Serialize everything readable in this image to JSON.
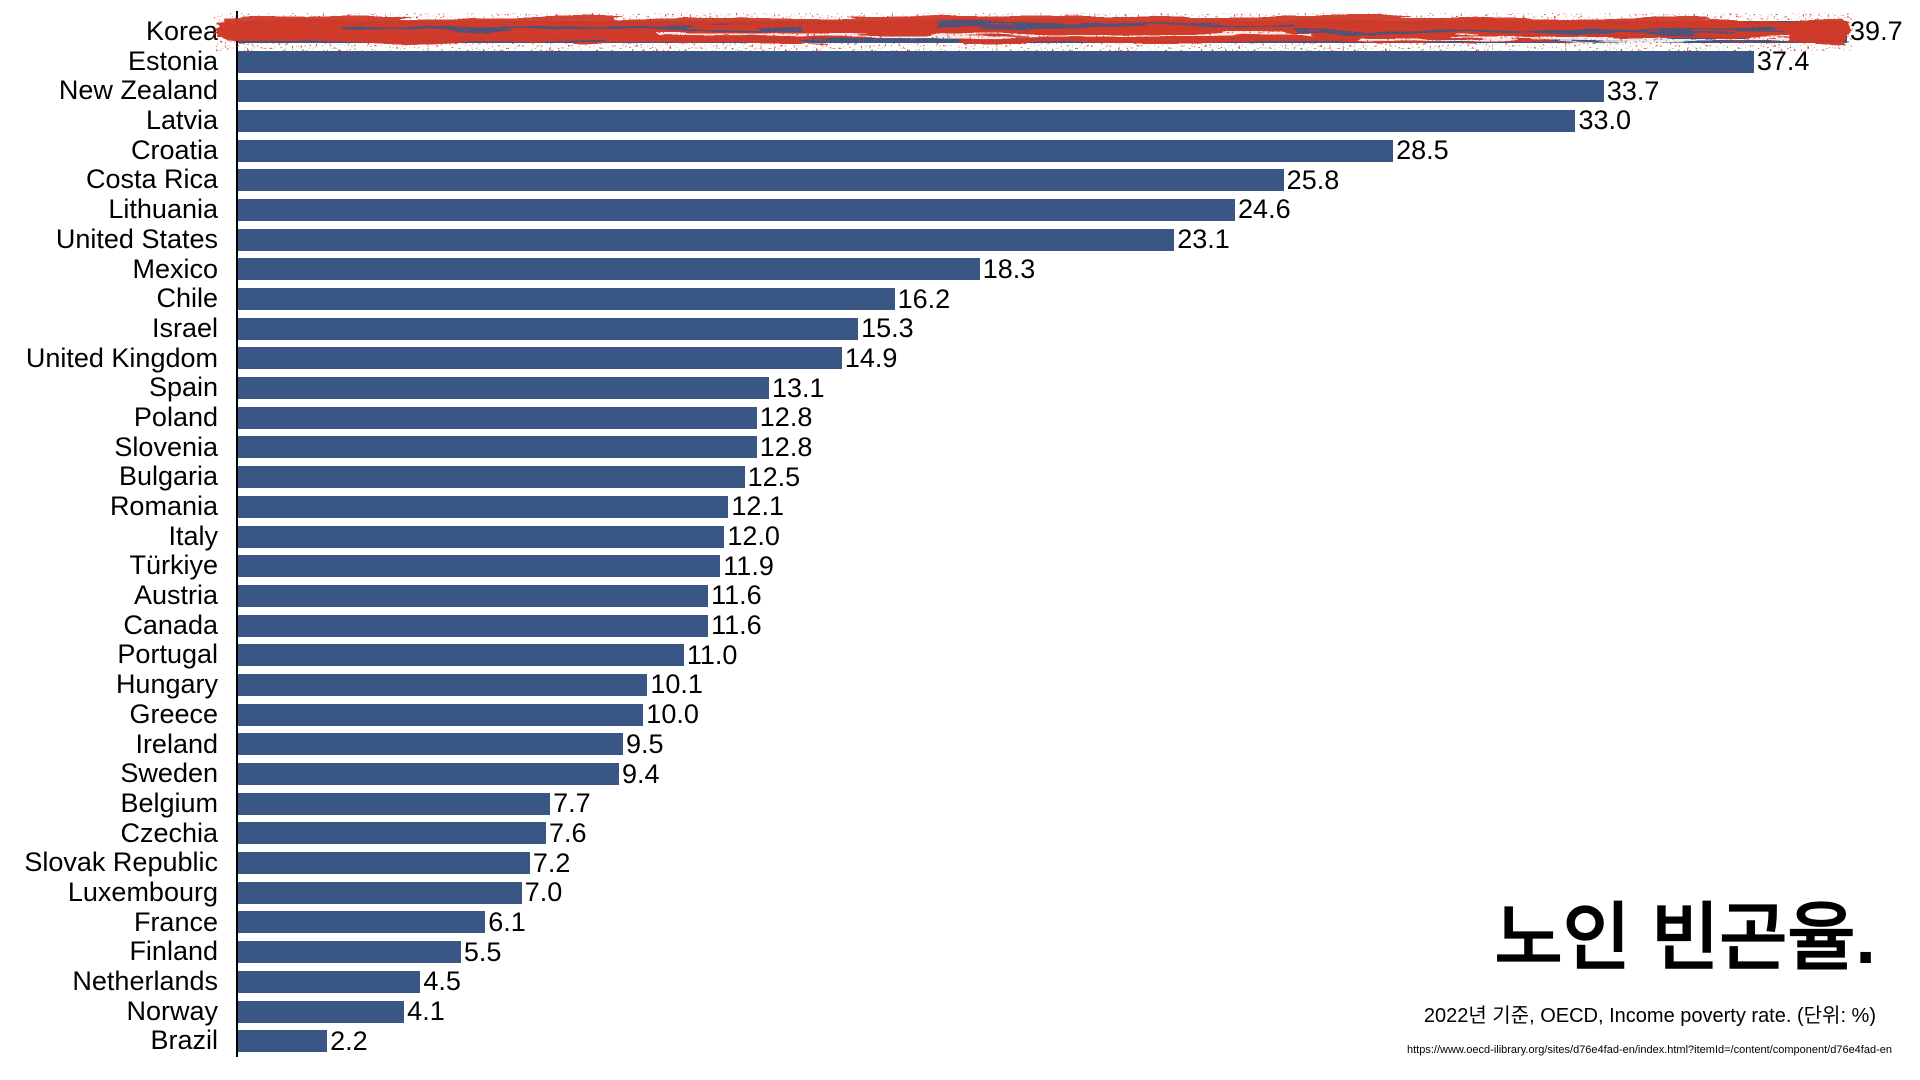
{
  "chart_data": {
    "type": "bar",
    "orientation": "horizontal",
    "title": "노인 빈곤율.",
    "subtitle": "2022년 기준, OECD, Income poverty rate. (단위: %)",
    "source_url": "https://www.oecd-ilibrary.org/sites/d76e4fad-en/index.html?itemId=/content/component/d76e4fad-en",
    "unit": "%",
    "xlim": [
      0,
      41.5
    ],
    "grid": false,
    "legend": false,
    "bar_color": "#3A5685",
    "highlight_color": "#CF3A29",
    "highlighted_category": "Korea",
    "categories": [
      "Korea",
      "Estonia",
      "New Zealand",
      "Latvia",
      "Croatia",
      "Costa Rica",
      "Lithuania",
      "United States",
      "Mexico",
      "Chile",
      "Israel",
      "United Kingdom",
      "Spain",
      "Poland",
      "Slovenia",
      "Bulgaria",
      "Romania",
      "Italy",
      "Türkiye",
      "Austria",
      "Canada",
      "Portugal",
      "Hungary",
      "Greece",
      "Ireland",
      "Sweden",
      "Belgium",
      "Czechia",
      "Slovak Republic",
      "Luxembourg",
      "France",
      "Finland",
      "Netherlands",
      "Norway",
      "Brazil"
    ],
    "values": [
      39.7,
      37.4,
      33.7,
      33.0,
      28.5,
      25.8,
      24.6,
      23.1,
      18.3,
      16.2,
      15.3,
      14.9,
      13.1,
      12.8,
      12.8,
      12.5,
      12.1,
      12.0,
      11.9,
      11.6,
      11.6,
      11.0,
      10.1,
      10.0,
      9.5,
      9.4,
      7.7,
      7.6,
      7.2,
      7.0,
      6.1,
      5.5,
      4.5,
      4.1,
      2.2
    ],
    "value_labels": [
      "39.7",
      "37.4",
      "33.7",
      "33.0",
      "28.5",
      "25.8",
      "24.6",
      "23.1",
      "18.3",
      "16.2",
      "15.3",
      "14.9",
      "13.1",
      "12.8",
      "12.8",
      "12.5",
      "12.1",
      "12.0",
      "11.9",
      "11.6",
      "11.6",
      "11.0",
      "10.1",
      "10.0",
      "9.5",
      "9.4",
      "7.7",
      "7.6",
      "7.2",
      "7.0",
      "6.1",
      "5.5",
      "4.5",
      "4.1",
      "2.2"
    ]
  }
}
